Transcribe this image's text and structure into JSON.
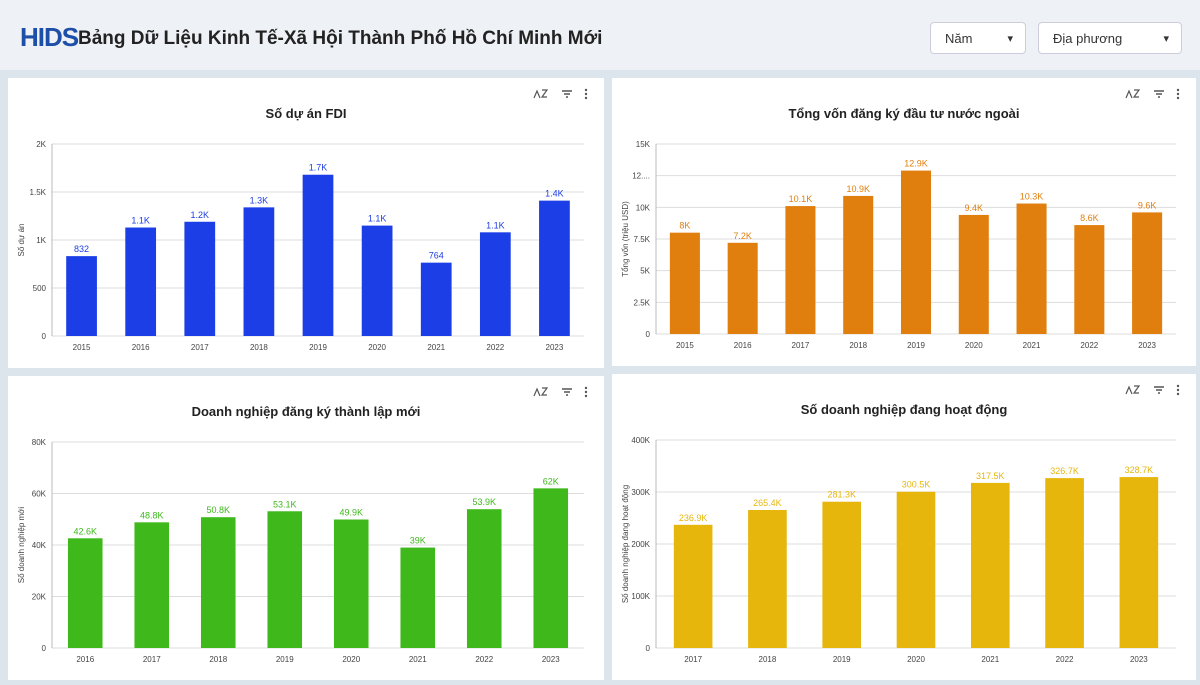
{
  "header": {
    "logo": "HIDS",
    "title": "Bảng Dữ Liệu Kinh Tế-Xã Hội Thành Phố Hồ Chí Minh Mới",
    "filters": [
      "Năm",
      "Địa phương"
    ]
  },
  "chart_data": [
    {
      "type": "bar",
      "title": "Số dự án FDI",
      "y_label": "Số dự án",
      "color": "#1c3ee6",
      "categories": [
        "2015",
        "2016",
        "2017",
        "2018",
        "2019",
        "2020",
        "2021",
        "2022",
        "2023"
      ],
      "values": [
        832,
        1130,
        1190,
        1340,
        1680,
        1150,
        764,
        1080,
        1410
      ],
      "value_labels": [
        "832",
        "1.1K",
        "1.2K",
        "1.3K",
        "1.7K",
        "1.1K",
        "764",
        "1.1K",
        "1.4K"
      ],
      "ylim": [
        0,
        2000
      ],
      "yticks": [
        0,
        500,
        {
          "value": 1000,
          "label": "1K"
        },
        {
          "value": 1500,
          "label": "1.5K"
        },
        {
          "value": 2000,
          "label": "2K"
        }
      ],
      "grid": true
    },
    {
      "type": "bar",
      "title": "Tổng vốn đăng ký đầu tư nước ngoài",
      "y_label": "Tổng vốn (triệu USD)",
      "color": "#e07f0e",
      "categories": [
        "2015",
        "2016",
        "2017",
        "2018",
        "2019",
        "2020",
        "2021",
        "2022",
        "2023"
      ],
      "values": [
        8000,
        7200,
        10100,
        10900,
        12900,
        9400,
        10300,
        8600,
        9600
      ],
      "value_labels": [
        "8K",
        "7.2K",
        "10.1K",
        "10.9K",
        "12.9K",
        "9.4K",
        "10.3K",
        "8.6K",
        "9.6K"
      ],
      "ylim": [
        0,
        15000
      ],
      "yticks": [
        0,
        {
          "value": 2500,
          "label": "2.5K"
        },
        {
          "value": 5000,
          "label": "5K"
        },
        {
          "value": 7500,
          "label": "7.5K"
        },
        {
          "value": 10000,
          "label": "10K"
        },
        {
          "value": 12500,
          "label": "12...."
        },
        {
          "value": 15000,
          "label": "15K"
        }
      ],
      "grid": true
    },
    {
      "type": "bar",
      "title": "Doanh nghiệp đăng ký thành lập mới",
      "y_label": "Số doanh nghiệp mới",
      "color": "#3fb81c",
      "categories": [
        "2016",
        "2017",
        "2018",
        "2019",
        "2020",
        "2021",
        "2022",
        "2023"
      ],
      "values": [
        42600,
        48800,
        50800,
        53100,
        49900,
        39000,
        53900,
        62000
      ],
      "value_labels": [
        "42.6K",
        "48.8K",
        "50.8K",
        "53.1K",
        "49.9K",
        "39K",
        "53.9K",
        "62K"
      ],
      "ylim": [
        0,
        80000
      ],
      "yticks": [
        0,
        {
          "value": 20000,
          "label": "20K"
        },
        {
          "value": 40000,
          "label": "40K"
        },
        {
          "value": 60000,
          "label": "60K"
        },
        {
          "value": 80000,
          "label": "80K"
        }
      ],
      "grid": true
    },
    {
      "type": "bar",
      "title": "Số doanh nghiệp đang hoạt động",
      "y_label": "Số doanh nghiệp đang hoạt động",
      "color": "#e6b60c",
      "categories": [
        "2017",
        "2018",
        "2019",
        "2020",
        "2021",
        "2022",
        "2023"
      ],
      "values": [
        236900,
        265400,
        281300,
        300500,
        317500,
        326700,
        328700
      ],
      "value_labels": [
        "236.9K",
        "265.4K",
        "281.3K",
        "300.5K",
        "317.5K",
        "326.7K",
        "328.7K"
      ],
      "ylim": [
        0,
        400000
      ],
      "yticks": [
        0,
        {
          "value": 100000,
          "label": "100K"
        },
        {
          "value": 200000,
          "label": "200K"
        },
        {
          "value": 300000,
          "label": "300K"
        },
        {
          "value": 400000,
          "label": "400K"
        }
      ],
      "grid": true
    }
  ]
}
